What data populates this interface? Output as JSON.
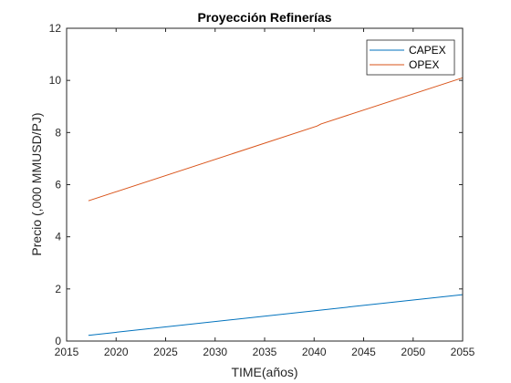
{
  "chart_data": {
    "type": "line",
    "title": "Proyección Refinerías",
    "xlabel": "TIME(años)",
    "ylabel": "Precio (,000 MMUSD/PJ)",
    "xlim": [
      2015,
      2055
    ],
    "ylim": [
      0,
      12
    ],
    "xticks": [
      2015,
      2020,
      2025,
      2030,
      2035,
      2040,
      2045,
      2050,
      2055
    ],
    "yticks": [
      0,
      2,
      4,
      6,
      8,
      10,
      12
    ],
    "grid": false,
    "legend_position": "top-right",
    "series": [
      {
        "name": "CAPEX",
        "color": "#0072BD",
        "x": [
          2017.2,
          2055
        ],
        "y": [
          0.22,
          1.78
        ]
      },
      {
        "name": "OPEX",
        "color": "#D95319",
        "x": [
          2017.2,
          2040.3,
          2040.7,
          2055
        ],
        "y": [
          5.38,
          8.25,
          8.33,
          10.1
        ]
      }
    ]
  }
}
